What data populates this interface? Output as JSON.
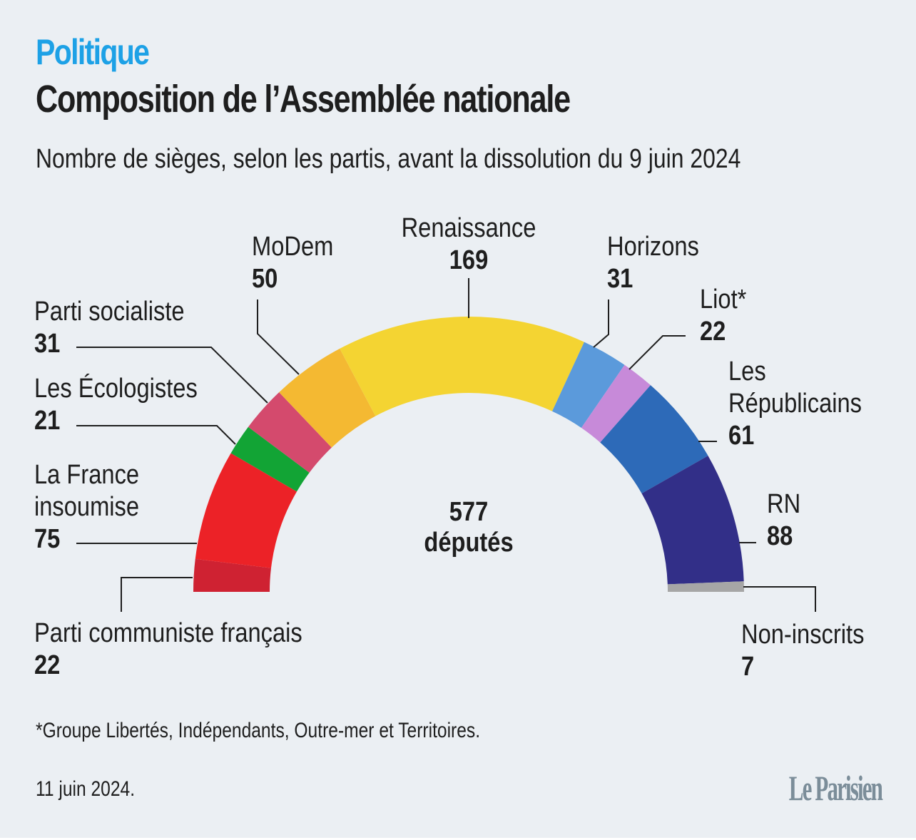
{
  "header": {
    "kicker": "Politique",
    "title": "Composition de l’Assemblée nationale",
    "subtitle": "Nombre de sièges, selon les partis, avant la dissolution du 9 juin 2024"
  },
  "chart_data": {
    "type": "pie",
    "variant": "parliament-hemicycle",
    "title": "Composition de l’Assemblée nationale",
    "subtitle": "Nombre de sièges, selon les partis, avant la dissolution du 9 juin 2024",
    "total": 577,
    "center_label": {
      "value": "577",
      "unit": "députés"
    },
    "order": "left-to-right",
    "slices": [
      {
        "name": "Parti communiste français",
        "lines": [
          "Parti communiste français"
        ],
        "value": 22,
        "color": "#cf2232"
      },
      {
        "name": "La France insoumise",
        "lines": [
          "La France",
          "insoumise"
        ],
        "value": 75,
        "color": "#ec2227"
      },
      {
        "name": "Les Écologistes",
        "lines": [
          "Les Écologistes"
        ],
        "value": 21,
        "color": "#12a435"
      },
      {
        "name": "Parti socialiste",
        "lines": [
          "Parti socialiste"
        ],
        "value": 31,
        "color": "#d44a6d"
      },
      {
        "name": "MoDem",
        "lines": [
          "MoDem"
        ],
        "value": 50,
        "color": "#f4b932"
      },
      {
        "name": "Renaissance",
        "lines": [
          "Renaissance"
        ],
        "value": 169,
        "color": "#f4d432"
      },
      {
        "name": "Horizons",
        "lines": [
          "Horizons"
        ],
        "value": 31,
        "color": "#5b9adb"
      },
      {
        "name": "Liot*",
        "lines": [
          "Liot*"
        ],
        "value": 22,
        "color": "#c78ad9"
      },
      {
        "name": "Les Républicains",
        "lines": [
          "Les",
          "Républicains"
        ],
        "value": 61,
        "color": "#2d6ab8"
      },
      {
        "name": "RN",
        "lines": [
          "RN"
        ],
        "value": 88,
        "color": "#322f88"
      },
      {
        "name": "Non-inscrits",
        "lines": [
          "Non-inscrits"
        ],
        "value": 7,
        "color": "#a6a6a6"
      }
    ]
  },
  "footer": {
    "footnote": "*Groupe Libertés, Indépendants, Outre-mer et Territoires.",
    "date": "11 juin 2024.",
    "logo": "Le Parisien"
  }
}
